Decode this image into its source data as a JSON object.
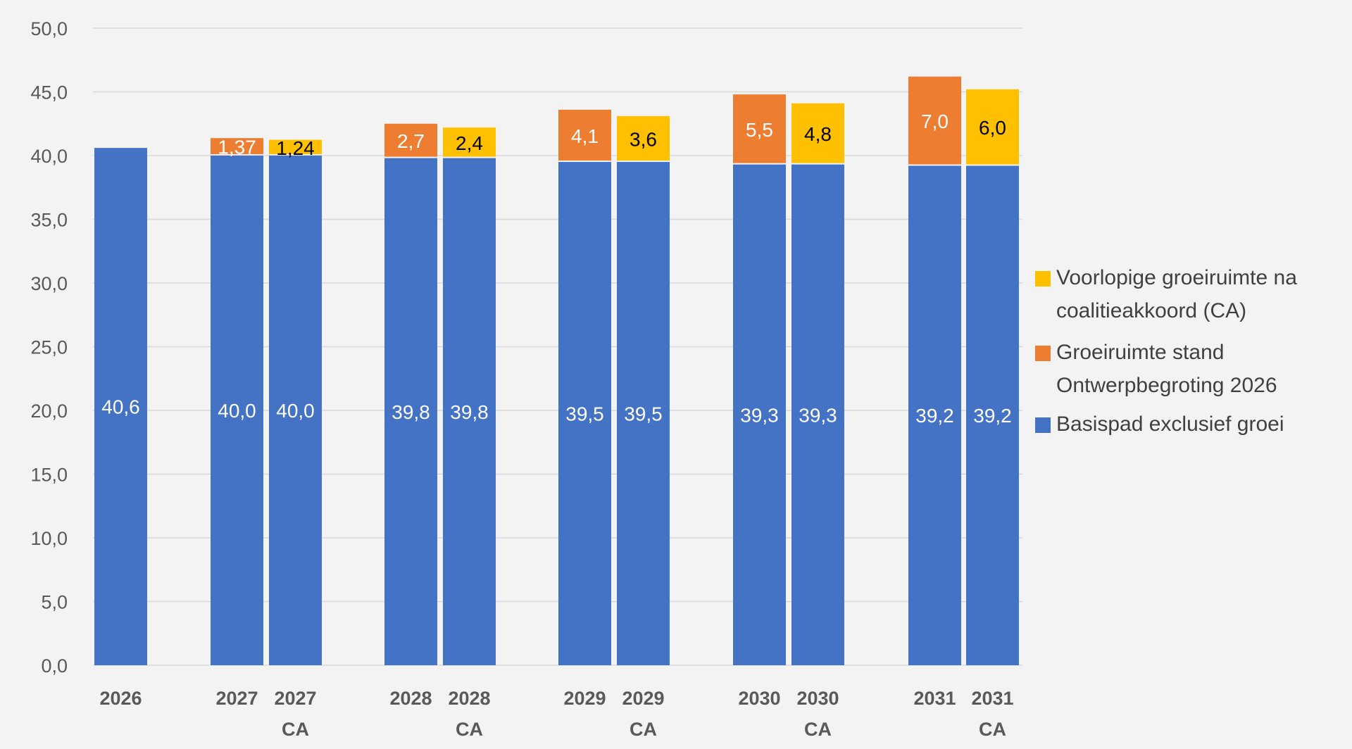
{
  "chart_data": {
    "type": "bar",
    "stacked": true,
    "title": "",
    "xlabel": "",
    "ylabel": "",
    "ylim": [
      0,
      50
    ],
    "yticks": [
      "0,0",
      "5,0",
      "10,0",
      "15,0",
      "20,0",
      "25,0",
      "30,0",
      "35,0",
      "40,0",
      "45,0",
      "50,0"
    ],
    "grid": true,
    "legend_position": "right",
    "categories": [
      [
        "2026"
      ],
      [
        "2027"
      ],
      [
        "2027",
        "CA"
      ],
      [
        "2028"
      ],
      [
        "2028",
        "CA"
      ],
      [
        "2029"
      ],
      [
        "2029",
        "CA"
      ],
      [
        "2030"
      ],
      [
        "2030",
        "CA"
      ],
      [
        "2031"
      ],
      [
        "2031",
        "CA"
      ]
    ],
    "groups": [
      [
        0
      ],
      [
        1,
        2
      ],
      [
        3,
        4
      ],
      [
        5,
        6
      ],
      [
        7,
        8
      ],
      [
        9,
        10
      ]
    ],
    "series": [
      {
        "name": "Basispad exclusief groei",
        "color": "#4472c4",
        "label_color": "#ffffff",
        "values": [
          40.6,
          40.0,
          40.0,
          39.8,
          39.8,
          39.5,
          39.5,
          39.3,
          39.3,
          39.2,
          39.2
        ],
        "labels": [
          "40,6",
          "40,0",
          "40,0",
          "39,8",
          "39,8",
          "39,5",
          "39,5",
          "39,3",
          "39,3",
          "39,2",
          "39,2"
        ]
      },
      {
        "name": "Groeiruimte stand Ontwerpbegroting 2026",
        "legend_lines": [
          "Groeiruimte stand",
          "Ontwerpbegroting 2026"
        ],
        "color": "#ed7d31",
        "label_color": "#ffffff",
        "values": [
          null,
          1.37,
          null,
          2.7,
          null,
          4.1,
          null,
          5.5,
          null,
          7.0,
          null
        ],
        "labels": [
          null,
          "1,37",
          null,
          "2,7",
          null,
          "4,1",
          null,
          "5,5",
          null,
          "7,0",
          null
        ]
      },
      {
        "name": "Voorlopige groeiruimte na coalitieakkoord (CA)",
        "legend_lines": [
          "Voorlopige groeiruimte na",
          "coalitieakkoord (CA)"
        ],
        "color": "#ffc000",
        "label_color": "#000000",
        "values": [
          null,
          null,
          1.24,
          null,
          2.4,
          null,
          3.6,
          null,
          4.8,
          null,
          6.0
        ],
        "labels": [
          null,
          null,
          "1,24",
          null,
          "2,4",
          null,
          "3,6",
          null,
          "4,8",
          null,
          "6,0"
        ]
      }
    ],
    "legend_order": [
      2,
      1,
      0
    ]
  }
}
